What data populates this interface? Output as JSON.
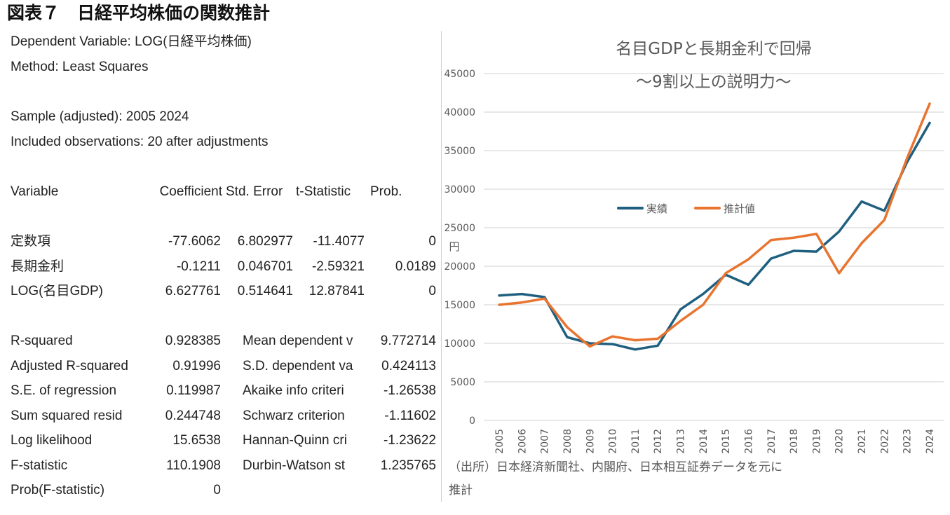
{
  "title": "図表７　日経平均株価の関数推計",
  "regression": {
    "dependent": "Dependent Variable: LOG(日経平均株価)",
    "method": "Method: Least Squares",
    "sample": "Sample (adjusted): 2005 2024",
    "observations": "Included observations: 20 after adjustments",
    "headers": [
      "Variable",
      "Coefficient",
      "Std. Error",
      "t-Statistic",
      "Prob."
    ],
    "rows": [
      [
        "定数項",
        "-77.6062",
        "6.802977",
        "-11.4077",
        "0"
      ],
      [
        "長期金利",
        "-0.1211",
        "0.046701",
        "-2.59321",
        "0.0189"
      ],
      [
        "LOG(名目GDP)",
        "6.627761",
        "0.514641",
        "12.87841",
        "0"
      ]
    ],
    "stats": [
      [
        "R-squared",
        "0.928385",
        "Mean dependent v",
        "9.772714"
      ],
      [
        "Adjusted R-squared",
        "0.91996",
        "S.D. dependent va",
        "0.424113"
      ],
      [
        "S.E. of regression",
        "0.119987",
        "Akaike info criteri",
        "-1.26538"
      ],
      [
        "Sum squared resid",
        "0.244748",
        "Schwarz criterion",
        "-1.11602"
      ],
      [
        "Log likelihood",
        "15.6538",
        "Hannan-Quinn cri",
        "-1.23622"
      ],
      [
        "F-statistic",
        "110.1908",
        "Durbin-Watson st",
        "1.235765"
      ],
      [
        "Prob(F-statistic)",
        "0",
        "",
        ""
      ]
    ]
  },
  "chart_data": {
    "type": "line",
    "title": "名目GDPと長期金利で回帰",
    "subtitle": "～9割以上の説明力～",
    "ylabel": "円",
    "xlabel": "",
    "ylim": [
      0,
      45000
    ],
    "yticks": [
      "0",
      "5000",
      "10000",
      "15000",
      "20000",
      "25000",
      "30000",
      "35000",
      "40000",
      "45000"
    ],
    "grid": true,
    "legend": "center",
    "categories": [
      "2005",
      "2006",
      "2007",
      "2008",
      "2009",
      "2010",
      "2011",
      "2012",
      "2013",
      "2014",
      "2015",
      "2016",
      "2017",
      "2018",
      "2019",
      "2020",
      "2021",
      "2022",
      "2023",
      "2024"
    ],
    "series": [
      {
        "name": "実績",
        "color": "#1f5f7f",
        "values": [
          16200,
          16400,
          16000,
          10800,
          10000,
          9900,
          9200,
          9700,
          14400,
          16400,
          18900,
          17600,
          21000,
          22000,
          21900,
          24500,
          28400,
          27200,
          33500,
          38600
        ]
      },
      {
        "name": "推計値",
        "color": "#e8742f",
        "values": [
          15000,
          15300,
          15800,
          12100,
          9600,
          10900,
          10400,
          10600,
          12900,
          15000,
          19100,
          20900,
          23400,
          23700,
          24200,
          19100,
          23000,
          26000,
          34000,
          41100
        ]
      }
    ],
    "source": "（出所）日本経済新聞社、内閣府、日本相互証券データを元に推計"
  }
}
